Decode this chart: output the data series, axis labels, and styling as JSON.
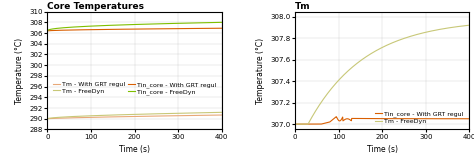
{
  "left": {
    "title": "Core Temperatures",
    "xlabel": "Time (s)",
    "ylabel": "Temperature (°C)",
    "xlim": [
      0,
      400
    ],
    "ylim": [
      288,
      310
    ],
    "yticks": [
      288,
      290,
      292,
      294,
      296,
      298,
      300,
      302,
      304,
      306,
      308,
      310
    ],
    "xticks": [
      0,
      100,
      200,
      300,
      400
    ],
    "colors": {
      "Tm_GRT": "#e8a878",
      "Tm_Free": "#c8c878",
      "Tin_GRT": "#d95f02",
      "Tin_Free": "#7fbf00"
    },
    "labels": {
      "Tm_GRT": "Tm - With GRT regul",
      "Tm_Free": "Tm - FreeDyn",
      "Tin_GRT": "Tin_core - With GRT regul",
      "Tin_Free": "Tin_core - FreeDyn"
    }
  },
  "right": {
    "title": "Tm",
    "xlabel": "Time (s)",
    "ylabel": "Temperature (°C)",
    "xlim": [
      0,
      400
    ],
    "ylim": [
      306.95,
      308.05
    ],
    "yticks": [
      307.0,
      307.2,
      307.4,
      307.6,
      307.8,
      308.0
    ],
    "xticks": [
      0,
      100,
      200,
      300,
      400
    ],
    "colors": {
      "Tin_GRT": "#d95f02",
      "Tm_Free": "#c8c878"
    },
    "labels": {
      "Tin_GRT": "Tin_core - With GRT regul",
      "Tm_Free": "Tm - FreeDyn"
    }
  },
  "grid_color": "#cccccc",
  "grid_alpha": 0.8,
  "title_fontsize": 6.5,
  "label_fontsize": 5.5,
  "tick_fontsize": 5,
  "legend_fontsize": 4.5,
  "line_width": 0.8
}
